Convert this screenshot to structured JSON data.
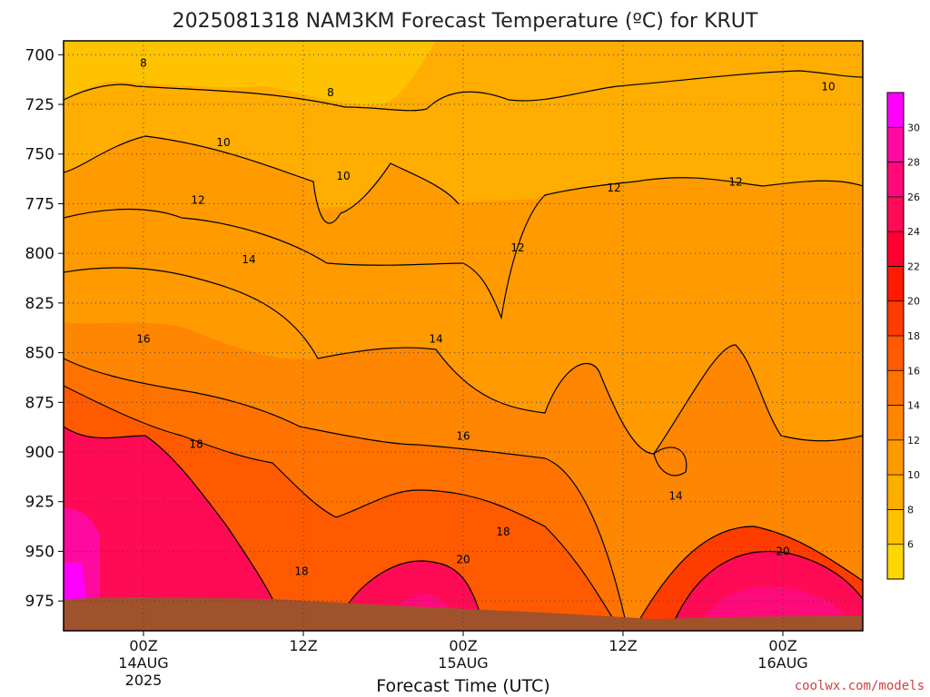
{
  "chart_data": {
    "type": "heatmap",
    "title": "2025081318 NAM3KM Forecast Temperature (ºC) for KRUT",
    "xlabel": "Forecast Time (UTC)",
    "ylabel": "",
    "y_scale": "pressure (hPa)",
    "ylim": [
      990,
      693
    ],
    "y_ticks": [
      "700",
      "725",
      "750",
      "775",
      "800",
      "825",
      "850",
      "875",
      "900",
      "925",
      "950",
      "975"
    ],
    "x_ticks": [
      {
        "time": "00Z",
        "date": "14AUG",
        "year": "2025"
      },
      {
        "time": "12Z",
        "date": "",
        "year": ""
      },
      {
        "time": "00Z",
        "date": "15AUG",
        "year": ""
      },
      {
        "time": "12Z",
        "date": "",
        "year": ""
      },
      {
        "time": "00Z",
        "date": "16AUG",
        "year": ""
      }
    ],
    "grid": true,
    "colorbar": {
      "ticks": [
        "6",
        "8",
        "10",
        "12",
        "14",
        "16",
        "18",
        "20",
        "22",
        "24",
        "26",
        "28",
        "30"
      ],
      "colors": [
        "#ffd700",
        "#ffc200",
        "#ffad00",
        "#ff9a00",
        "#ff8600",
        "#ff7200",
        "#ff5a00",
        "#ff3c00",
        "#ff1a00",
        "#ff0033",
        "#ff0a55",
        "#ff0a7a",
        "#ff0aa0",
        "#ff00ff"
      ]
    },
    "terrain_color": "#a0522d",
    "contour_labels": [
      {
        "text": "8",
        "time": "00Z 14AUG",
        "pressure": 705
      },
      {
        "text": "8",
        "time": "12Z 14AUG",
        "pressure": 720
      },
      {
        "text": "10",
        "time": "00Z 14AUG",
        "pressure": 745
      },
      {
        "text": "10",
        "time": "12Z 14AUG",
        "pressure": 762
      },
      {
        "text": "10",
        "time": "00Z 16AUG",
        "pressure": 717
      },
      {
        "text": "12",
        "time": "00Z 14AUG",
        "pressure": 774
      },
      {
        "text": "12",
        "time": "00Z 15AUG",
        "pressure": 798
      },
      {
        "text": "12",
        "time": "12Z 15AUG",
        "pressure": 768
      },
      {
        "text": "12",
        "time": "00Z 16AUG",
        "pressure": 765
      },
      {
        "text": "14",
        "time": "00Z 14AUG",
        "pressure": 804
      },
      {
        "text": "14",
        "time": "12Z 14AUG",
        "pressure": 844
      },
      {
        "text": "14",
        "time": "12Z 15AUG",
        "pressure": 923
      },
      {
        "text": "16",
        "time": "00Z 14AUG",
        "pressure": 844
      },
      {
        "text": "16",
        "time": "00Z 15AUG",
        "pressure": 893
      },
      {
        "text": "18",
        "time": "00Z 14AUG",
        "pressure": 897
      },
      {
        "text": "18",
        "time": "12Z 14AUG",
        "pressure": 961
      },
      {
        "text": "18",
        "time": "00Z 15AUG",
        "pressure": 941
      },
      {
        "text": "20",
        "time": "00Z 15AUG",
        "pressure": 955
      },
      {
        "text": "20",
        "time": "00Z 16AUG",
        "pressure": 951
      }
    ]
  },
  "credit": "coolwx.com/models",
  "colors": {
    "credit": "#d04040"
  }
}
